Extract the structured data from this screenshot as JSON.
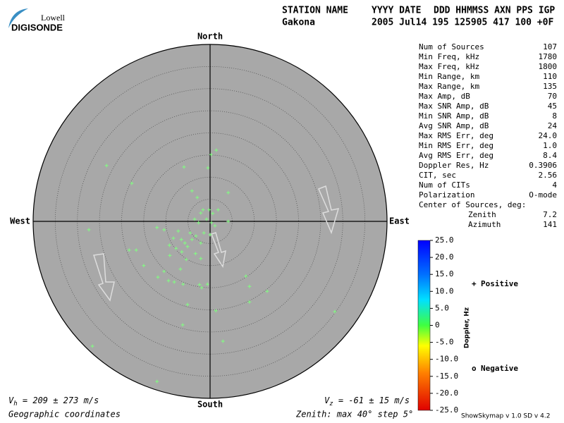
{
  "logo": {
    "maker": "Lowell",
    "product": "DIGISONDE"
  },
  "header": {
    "station_label": "STATION NAME",
    "date_label": "YYYY DATE",
    "fields_label": "DDD HHMMSS AXN PPS IGP",
    "station": "Gakona",
    "record": "2005 Jul14 195 125905 417 100 +0F"
  },
  "stats": {
    "rows": [
      [
        "Num of Sources",
        "107"
      ],
      [
        "Min Freq, kHz",
        "1780"
      ],
      [
        "Max Freq, kHz",
        "1800"
      ],
      [
        "Min Range, km",
        "110"
      ],
      [
        "Max Range, km",
        "135"
      ],
      [
        "Max Amp, dB",
        "70"
      ],
      [
        "Max SNR Amp, dB",
        "45"
      ],
      [
        "Min SNR Amp, dB",
        "8"
      ],
      [
        "Avg SNR Amp, dB",
        "24"
      ],
      [
        "Max RMS Err, deg",
        "24.0"
      ],
      [
        "Min RMS Err, deg",
        "1.0"
      ],
      [
        "Avg RMS Err, deg",
        "8.4"
      ],
      [
        "Doppler Res, Hz",
        "0.3906"
      ],
      [
        "CIT, sec",
        "2.56"
      ],
      [
        "Num of CITs",
        "4"
      ],
      [
        "Polarization",
        "O-mode"
      ]
    ],
    "center_title": "Center of Sources, deg:",
    "center_rows": [
      [
        "Zenith",
        "7.2"
      ],
      [
        "Azimuth",
        "141"
      ]
    ]
  },
  "footer": {
    "vh_symbol": "V",
    "vh_sub": "h",
    "vh_text": " = 209 ± 273 m/s",
    "vz_symbol": "V",
    "vz_sub": "z",
    "vz_text": " = -61 ± 15 m/s",
    "coordinates": "Geographic coordinates",
    "zenith": "Zenith: max 40°  step 5°",
    "version": "ShowSkymap v 1.0  SD v 4.2"
  },
  "chart_data": {
    "type": "scatter",
    "directions": {
      "north": "North",
      "south": "South",
      "east": "East",
      "west": "West"
    },
    "xlim": [
      -40,
      40
    ],
    "ylim": [
      -40,
      40
    ],
    "rticks": [
      5,
      10,
      15,
      20,
      25,
      30,
      35,
      40
    ],
    "series": [
      {
        "color": "#80ff80",
        "x": [
          1.4,
          0.2,
          -23.4,
          -5.9,
          -0.5,
          -17.7,
          -4.1,
          4.1,
          -2.9,
          -1.6,
          -0.2,
          -2.1,
          1.8,
          0.6,
          -3.5,
          -0.8,
          4.1,
          -2.6,
          0.3,
          1.1,
          -12.0,
          -10.4,
          -27.4,
          -7.2,
          -4.5,
          -1.4,
          0,
          -3.2,
          -8.3,
          -6.5,
          -4.1,
          -5.7,
          -2.1,
          -9.2,
          -5.1,
          -7.7,
          -18.3,
          -16.7,
          -6.4,
          -3.3,
          -9.1,
          -2.1,
          -5.4,
          -15.0,
          -10.4,
          -6.7,
          8.1,
          -11.8,
          -9.4,
          -8.1,
          -2.4,
          -6.1,
          -0.6,
          8.9,
          12.9,
          -1.9,
          -5.1,
          8.9,
          1.3,
          28.2,
          -6.2,
          2.9,
          -26.6,
          -12.0
        ],
        "values": [
          16.1,
          15.1,
          12.6,
          12.3,
          12.1,
          8.6,
          6.9,
          6.5,
          5.4,
          2.6,
          2.6,
          1.9,
          2.6,
          1.8,
          0.5,
          0.5,
          0,
          -0.3,
          -0.3,
          -1.0,
          -1.4,
          -1.9,
          -1.9,
          -2.2,
          -2.6,
          -2.6,
          -3.0,
          -3.3,
          -3.8,
          -4.1,
          -4.1,
          -4.9,
          -4.9,
          -5.4,
          -5.7,
          -6.1,
          -6.5,
          -6.5,
          -6.9,
          -7.3,
          -7.7,
          -8.4,
          -8.6,
          -10.0,
          -11.3,
          -10.8,
          -12.4,
          -12.6,
          -13.4,
          -13.7,
          -14.3,
          -14.2,
          -14.2,
          -14.7,
          -15.8,
          -15.0,
          -18.8,
          -18.2,
          -20.2,
          -20.4,
          -23.4,
          -27.1,
          -28.2,
          -36.2
        ]
      }
    ],
    "legend": [
      {
        "symbol": "+",
        "label": "Positive",
        "color": "#0000c0"
      },
      {
        "symbol": "o",
        "label": "Negative",
        "color": "#e00000"
      }
    ],
    "colorbar": {
      "label": "Doppler, Hz",
      "lim": [
        -25,
        25
      ],
      "ticks": [
        {
          "value": 25,
          "label": "25.0"
        },
        {
          "value": 20,
          "label": "20.0"
        },
        {
          "value": 15,
          "label": "15.0"
        },
        {
          "value": 10,
          "label": "10.0"
        },
        {
          "value": 5,
          "label": "5.0"
        },
        0,
        {
          "value": -5,
          "label": "-5.0"
        },
        {
          "value": -10,
          "label": "-10.0"
        },
        {
          "value": -15,
          "label": "-15.0"
        },
        {
          "value": -20,
          "label": "-20.0"
        },
        {
          "value": -25,
          "label": "-25.0"
        }
      ]
    }
  }
}
